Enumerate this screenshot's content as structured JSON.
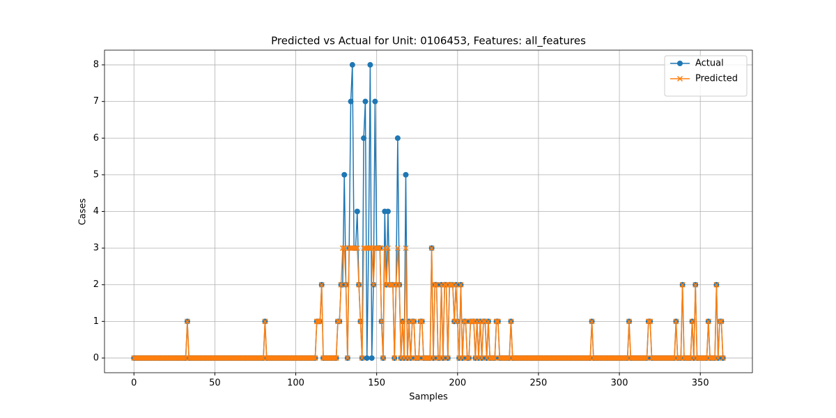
{
  "chart_data": {
    "type": "line",
    "title": "Predicted vs Actual for Unit: 0106453, Features: all_features",
    "xlabel": "Samples",
    "ylabel": "Cases",
    "x": [
      0,
      1,
      2,
      3,
      4,
      5,
      6,
      7,
      8,
      9,
      10,
      11,
      12,
      13,
      14,
      15,
      16,
      17,
      18,
      19,
      20,
      21,
      22,
      23,
      24,
      25,
      26,
      27,
      28,
      29,
      30,
      31,
      32,
      33,
      34,
      35,
      36,
      37,
      38,
      39,
      40,
      41,
      42,
      43,
      44,
      45,
      46,
      47,
      48,
      49,
      50,
      51,
      52,
      53,
      54,
      55,
      56,
      57,
      58,
      59,
      60,
      61,
      62,
      63,
      64,
      65,
      66,
      67,
      68,
      69,
      70,
      71,
      72,
      73,
      74,
      75,
      76,
      77,
      78,
      79,
      80,
      81,
      82,
      83,
      84,
      85,
      86,
      87,
      88,
      89,
      90,
      91,
      92,
      93,
      94,
      95,
      96,
      97,
      98,
      99,
      100,
      101,
      102,
      103,
      104,
      105,
      106,
      107,
      108,
      109,
      110,
      111,
      112,
      113,
      114,
      115,
      116,
      117,
      118,
      119,
      120,
      121,
      122,
      123,
      124,
      125,
      126,
      127,
      128,
      129,
      130,
      131,
      132,
      133,
      134,
      135,
      136,
      137,
      138,
      139,
      140,
      141,
      142,
      143,
      144,
      145,
      146,
      147,
      148,
      149,
      150,
      151,
      152,
      153,
      154,
      155,
      156,
      157,
      158,
      159,
      160,
      161,
      162,
      163,
      164,
      165,
      166,
      167,
      168,
      169,
      170,
      171,
      172,
      173,
      174,
      175,
      176,
      177,
      178,
      179,
      180,
      181,
      182,
      183,
      184,
      185,
      186,
      187,
      188,
      189,
      190,
      191,
      192,
      193,
      194,
      195,
      196,
      197,
      198,
      199,
      200,
      201,
      202,
      203,
      204,
      205,
      206,
      207,
      208,
      209,
      210,
      211,
      212,
      213,
      214,
      215,
      216,
      217,
      218,
      219,
      220,
      221,
      222,
      223,
      224,
      225,
      226,
      227,
      228,
      229,
      230,
      231,
      232,
      233,
      234,
      235,
      236,
      237,
      238,
      239,
      240,
      241,
      242,
      243,
      244,
      245,
      246,
      247,
      248,
      249,
      250,
      251,
      252,
      253,
      254,
      255,
      256,
      257,
      258,
      259,
      260,
      261,
      262,
      263,
      264,
      265,
      266,
      267,
      268,
      269,
      270,
      271,
      272,
      273,
      274,
      275,
      276,
      277,
      278,
      279,
      280,
      281,
      282,
      283,
      284,
      285,
      286,
      287,
      288,
      289,
      290,
      291,
      292,
      293,
      294,
      295,
      296,
      297,
      298,
      299,
      300,
      301,
      302,
      303,
      304,
      305,
      306,
      307,
      308,
      309,
      310,
      311,
      312,
      313,
      314,
      315,
      316,
      317,
      318,
      319,
      320,
      321,
      322,
      323,
      324,
      325,
      326,
      327,
      328,
      329,
      330,
      331,
      332,
      333,
      334,
      335,
      336,
      337,
      338,
      339,
      340,
      341,
      342,
      343,
      344,
      345,
      346,
      347,
      348,
      349,
      350,
      351,
      352,
      353,
      354,
      355,
      356,
      357,
      358,
      359,
      360,
      361,
      362,
      363,
      364
    ],
    "series": [
      {
        "name": "Actual",
        "color": "#1f77b4",
        "marker": "o",
        "values": [
          0,
          0,
          0,
          0,
          0,
          0,
          0,
          0,
          0,
          0,
          0,
          0,
          0,
          0,
          0,
          0,
          0,
          0,
          0,
          0,
          0,
          0,
          0,
          0,
          0,
          0,
          0,
          0,
          0,
          0,
          0,
          0,
          0,
          1,
          0,
          0,
          0,
          0,
          0,
          0,
          0,
          0,
          0,
          0,
          0,
          0,
          0,
          0,
          0,
          0,
          0,
          0,
          0,
          0,
          0,
          0,
          0,
          0,
          0,
          0,
          0,
          0,
          0,
          0,
          0,
          0,
          0,
          0,
          0,
          0,
          0,
          0,
          0,
          0,
          0,
          0,
          0,
          0,
          0,
          0,
          0,
          1,
          0,
          0,
          0,
          0,
          0,
          0,
          0,
          0,
          0,
          0,
          0,
          0,
          0,
          0,
          0,
          0,
          0,
          0,
          0,
          0,
          0,
          0,
          0,
          0,
          0,
          0,
          0,
          0,
          0,
          0,
          0,
          1,
          1,
          1,
          2,
          0,
          0,
          0,
          0,
          0,
          0,
          0,
          0,
          0,
          1,
          1,
          2,
          2,
          5,
          2,
          0,
          3,
          7,
          8,
          3,
          3,
          4,
          2,
          1,
          0,
          6,
          7,
          0,
          3,
          8,
          0,
          2,
          7,
          3,
          3,
          3,
          1,
          0,
          4,
          2,
          4,
          2,
          2,
          2,
          0,
          2,
          6,
          2,
          0,
          1,
          0,
          5,
          0,
          1,
          0,
          1,
          1,
          0,
          0,
          0,
          1,
          1,
          0,
          0,
          0,
          0,
          0,
          3,
          0,
          2,
          2,
          0,
          0,
          2,
          0,
          2,
          2,
          0,
          2,
          2,
          2,
          1,
          2,
          1,
          0,
          2,
          0,
          1,
          1,
          0,
          0,
          1,
          1,
          1,
          0,
          1,
          0,
          1,
          0,
          1,
          1,
          0,
          1,
          0,
          0,
          0,
          0,
          1,
          1,
          0,
          0,
          0,
          0,
          0,
          0,
          0,
          1,
          0,
          0,
          0,
          0,
          0,
          0,
          0,
          0,
          0,
          0,
          0,
          0,
          0,
          0,
          0,
          0,
          0,
          0,
          0,
          0,
          0,
          0,
          0,
          0,
          0,
          0,
          0,
          0,
          0,
          0,
          0,
          0,
          0,
          0,
          0,
          0,
          0,
          0,
          0,
          0,
          0,
          0,
          0,
          0,
          0,
          0,
          0,
          0,
          0,
          1,
          0,
          0,
          0,
          0,
          0,
          0,
          0,
          0,
          0,
          0,
          0,
          0,
          0,
          0,
          0,
          0,
          0,
          0,
          0,
          0,
          0,
          0,
          1,
          0,
          0,
          0,
          0,
          0,
          0,
          0,
          0,
          0,
          0,
          0,
          1,
          1,
          0,
          0,
          0,
          0,
          0,
          0,
          0,
          0,
          0,
          0,
          0,
          0,
          0,
          0,
          0,
          1,
          0,
          0,
          0,
          2,
          0,
          0,
          0,
          0,
          0,
          1,
          0,
          2,
          0,
          0,
          0,
          0,
          0,
          0,
          0,
          1,
          0,
          0,
          0,
          0,
          2,
          0,
          1,
          1,
          0
        ]
      },
      {
        "name": "Predicted",
        "color": "#ff7f0e",
        "marker": "x",
        "values": [
          0,
          0,
          0,
          0,
          0,
          0,
          0,
          0,
          0,
          0,
          0,
          0,
          0,
          0,
          0,
          0,
          0,
          0,
          0,
          0,
          0,
          0,
          0,
          0,
          0,
          0,
          0,
          0,
          0,
          0,
          0,
          0,
          0,
          1,
          0,
          0,
          0,
          0,
          0,
          0,
          0,
          0,
          0,
          0,
          0,
          0,
          0,
          0,
          0,
          0,
          0,
          0,
          0,
          0,
          0,
          0,
          0,
          0,
          0,
          0,
          0,
          0,
          0,
          0,
          0,
          0,
          0,
          0,
          0,
          0,
          0,
          0,
          0,
          0,
          0,
          0,
          0,
          0,
          0,
          0,
          0,
          1,
          0,
          0,
          0,
          0,
          0,
          0,
          0,
          0,
          0,
          0,
          0,
          0,
          0,
          0,
          0,
          0,
          0,
          0,
          0,
          0,
          0,
          0,
          0,
          0,
          0,
          0,
          0,
          0,
          0,
          0,
          0,
          1,
          1,
          1,
          2,
          0,
          0,
          0,
          0,
          0,
          0,
          0,
          0,
          0,
          1,
          1,
          2,
          3,
          3,
          2,
          0,
          3,
          3,
          3,
          3,
          3,
          3,
          2,
          1,
          0,
          3,
          3,
          3,
          3,
          3,
          3,
          2,
          3,
          3,
          3,
          3,
          1,
          0,
          3,
          2,
          3,
          2,
          2,
          2,
          0,
          2,
          3,
          2,
          0,
          1,
          0,
          3,
          0,
          1,
          0,
          1,
          1,
          0,
          0,
          0,
          1,
          1,
          0,
          0,
          0,
          0,
          0,
          3,
          0,
          2,
          2,
          0,
          0,
          2,
          0,
          2,
          2,
          0,
          2,
          2,
          2,
          1,
          2,
          1,
          0,
          2,
          0,
          1,
          1,
          0,
          0,
          1,
          1,
          1,
          0,
          1,
          0,
          1,
          0,
          1,
          1,
          0,
          1,
          0,
          0,
          0,
          0,
          1,
          1,
          0,
          0,
          0,
          0,
          0,
          0,
          0,
          1,
          0,
          0,
          0,
          0,
          0,
          0,
          0,
          0,
          0,
          0,
          0,
          0,
          0,
          0,
          0,
          0,
          0,
          0,
          0,
          0,
          0,
          0,
          0,
          0,
          0,
          0,
          0,
          0,
          0,
          0,
          0,
          0,
          0,
          0,
          0,
          0,
          0,
          0,
          0,
          0,
          0,
          0,
          0,
          0,
          0,
          0,
          0,
          0,
          0,
          1,
          0,
          0,
          0,
          0,
          0,
          0,
          0,
          0,
          0,
          0,
          0,
          0,
          0,
          0,
          0,
          0,
          0,
          0,
          0,
          0,
          0,
          0,
          1,
          0,
          0,
          0,
          0,
          0,
          0,
          0,
          0,
          0,
          0,
          0,
          1,
          1,
          0,
          0,
          0,
          0,
          0,
          0,
          0,
          0,
          0,
          0,
          0,
          0,
          0,
          0,
          0,
          1,
          0,
          0,
          0,
          2,
          0,
          0,
          0,
          0,
          0,
          1,
          0,
          2,
          0,
          0,
          0,
          0,
          0,
          0,
          0,
          1,
          0,
          0,
          0,
          0,
          2,
          0,
          1,
          1,
          0
        ]
      }
    ],
    "xlim": [
      -18.2,
      382.2
    ],
    "xticks": [
      0,
      50,
      100,
      150,
      200,
      250,
      300,
      350
    ],
    "ylim": [
      -0.4,
      8.4
    ],
    "yticks": [
      0,
      1,
      2,
      3,
      4,
      5,
      6,
      7,
      8
    ],
    "grid": true,
    "legend": "upper right"
  }
}
